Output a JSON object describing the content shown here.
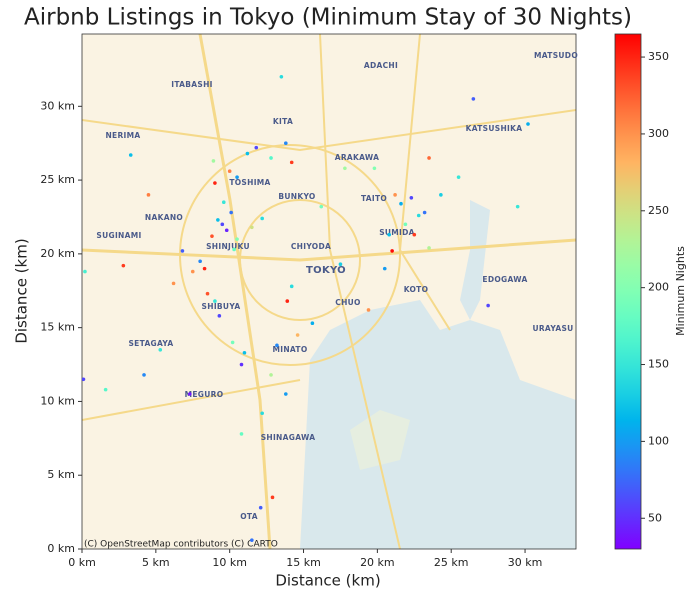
{
  "chart_data": {
    "type": "scatter",
    "title": "Airbnb Listings in Tokyo (Minimum Stay of 30 Nights)",
    "xlabel": "Distance (km)",
    "ylabel": "Distance (km)",
    "colorbar_label": "Minimum Nights",
    "colormap": "rainbow",
    "attribution": "(C) OpenStreetMap contributors (C) CARTO",
    "map_labels": [
      "ADACHI",
      "MATSUDO",
      "ITABASHI",
      "KITA",
      "KATSUSHIKA",
      "NERIMA",
      "ARAKAWA",
      "TOSHIMA",
      "BUNKYO",
      "TAITO",
      "NAKANO",
      "SUMIDA",
      "SUGINAMI",
      "SHINJUKU",
      "CHIYODA",
      "TOKYO",
      "EDOGAWA",
      "KOTO",
      "SHIBUYA",
      "CHUO",
      "URAYASU",
      "SETAGAYA",
      "MINATO",
      "MEGURO",
      "SHINAGAWA",
      "OTA"
    ],
    "xlim": [
      0,
      33.45
    ],
    "ylim": [
      0,
      34.9
    ],
    "clim": [
      30,
      365
    ],
    "xticks": [
      {
        "value": 0,
        "label": "0 km"
      },
      {
        "value": 5,
        "label": "5 km"
      },
      {
        "value": 10,
        "label": "10 km"
      },
      {
        "value": 15,
        "label": "15 km"
      },
      {
        "value": 20,
        "label": "20 km"
      },
      {
        "value": 25,
        "label": "25 km"
      },
      {
        "value": 30,
        "label": "30 km"
      }
    ],
    "yticks": [
      {
        "value": 0,
        "label": "0 km"
      },
      {
        "value": 5,
        "label": "5 km"
      },
      {
        "value": 10,
        "label": "10 km"
      },
      {
        "value": 15,
        "label": "15 km"
      },
      {
        "value": 20,
        "label": "20 km"
      },
      {
        "value": 25,
        "label": "25 km"
      },
      {
        "value": 30,
        "label": "30 km"
      }
    ],
    "cticks": [
      50,
      100,
      150,
      200,
      250,
      300,
      350
    ],
    "x": [
      9.5,
      9.8,
      9.2,
      10.1,
      8.8,
      10.5,
      9.6,
      8.3,
      7.5,
      8.0,
      6.8,
      10.3,
      11.5,
      12.2,
      10.0,
      10.5,
      9.0,
      11.2,
      11.8,
      12.8,
      13.8,
      14.2,
      8.9,
      21.2,
      21.6,
      22.3,
      22.8,
      21.9,
      20.8,
      22.5,
      21.0,
      23.5,
      20.5,
      23.2,
      24.3,
      25.5,
      19.8,
      23.5,
      9.0,
      9.3,
      8.5,
      10.2,
      11.0,
      10.8,
      13.2,
      14.6,
      15.6,
      14.2,
      13.9,
      12.8,
      12.2,
      13.8,
      12.9,
      12.1,
      11.5,
      10.8,
      6.2,
      5.3,
      4.2,
      1.6,
      0.1,
      2.8,
      4.5,
      3.3,
      27.5,
      29.5,
      30.2,
      26.5,
      17.8,
      17.5,
      19.4,
      16.2,
      7.3,
      13.5,
      0.2
    ],
    "y": [
      22.0,
      21.6,
      22.3,
      22.8,
      21.2,
      21.0,
      23.5,
      19.0,
      18.8,
      19.5,
      20.2,
      20.3,
      21.8,
      22.4,
      25.6,
      25.2,
      24.8,
      26.8,
      27.2,
      26.5,
      27.5,
      26.2,
      26.3,
      24.0,
      23.4,
      23.8,
      22.6,
      22.0,
      21.3,
      21.3,
      20.2,
      20.4,
      19.0,
      22.8,
      24.0,
      25.2,
      25.8,
      26.5,
      16.8,
      15.8,
      17.3,
      14.0,
      13.3,
      12.5,
      13.8,
      14.5,
      15.3,
      17.8,
      16.8,
      11.8,
      9.2,
      10.5,
      3.5,
      2.8,
      0.6,
      7.8,
      18.0,
      13.5,
      11.8,
      10.8,
      11.5,
      19.2,
      24.0,
      26.7,
      16.5,
      23.2,
      28.8,
      30.5,
      25.8,
      19.3,
      16.2,
      23.2,
      10.5,
      32.0,
      18.8
    ],
    "values": [
      60,
      45,
      120,
      80,
      330,
      200,
      150,
      350,
      300,
      90,
      70,
      180,
      250,
      140,
      310,
      100,
      350,
      120,
      60,
      170,
      90,
      340,
      220,
      300,
      110,
      60,
      140,
      190,
      120,
      340,
      360,
      230,
      100,
      80,
      130,
      150,
      200,
      320,
      150,
      60,
      330,
      190,
      120,
      50,
      90,
      280,
      110,
      140,
      350,
      230,
      140,
      100,
      340,
      70,
      80,
      180,
      300,
      150,
      90,
      170,
      60,
      340,
      310,
      120,
      60,
      150,
      110,
      70,
      220,
      130,
      300,
      190,
      40,
      140,
      160
    ]
  }
}
